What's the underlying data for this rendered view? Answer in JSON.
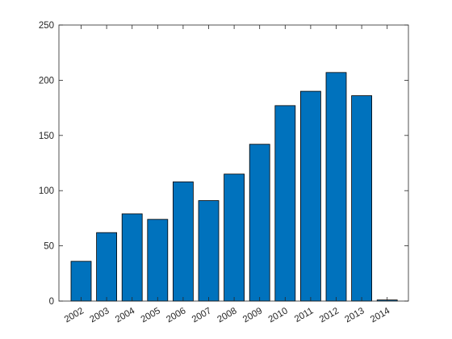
{
  "chart_data": {
    "type": "bar",
    "categories": [
      "2002",
      "2003",
      "2004",
      "2005",
      "2006",
      "2007",
      "2008",
      "2009",
      "2010",
      "2011",
      "2012",
      "2013",
      "2014"
    ],
    "values": [
      36,
      62,
      79,
      74,
      108,
      91,
      115,
      142,
      177,
      190,
      207,
      186,
      1
    ],
    "title": "",
    "xlabel": "",
    "ylabel": "",
    "ylim": [
      0,
      250
    ],
    "yticks": [
      0,
      50,
      100,
      150,
      200,
      250
    ],
    "grid": false,
    "bar_color": "#0072bd",
    "bar_edge_color": "#000000"
  }
}
